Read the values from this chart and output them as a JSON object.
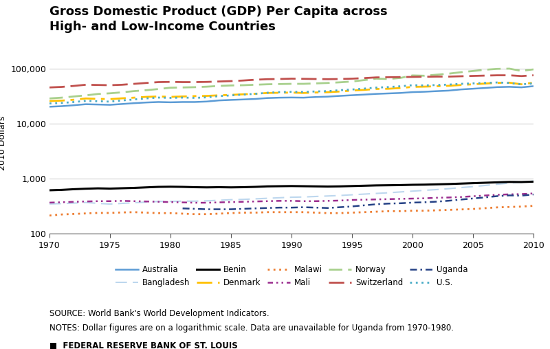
{
  "title": "Gross Domestic Product (GDP) Per Capita across\nHigh- and Low-Income Countries",
  "ylabel": "2010 Dollars",
  "source_text": "SOURCE: World Bank's World Development Indicators.",
  "notes_text": "NOTES: Dollar figures are on a logarithmic scale. Data are unavailable for Uganda from 1970-1980.",
  "footer_text": "■  FEDERAL RESERVE BANK OF ST. LOUIS",
  "years": [
    1970,
    1971,
    1972,
    1973,
    1974,
    1975,
    1976,
    1977,
    1978,
    1979,
    1980,
    1981,
    1982,
    1983,
    1984,
    1985,
    1986,
    1987,
    1988,
    1989,
    1990,
    1991,
    1992,
    1993,
    1994,
    1995,
    1996,
    1997,
    1998,
    1999,
    2000,
    2001,
    2002,
    2003,
    2004,
    2005,
    2006,
    2007,
    2008,
    2009,
    2010
  ],
  "series": {
    "Australia": {
      "color": "#5B9BD5",
      "linestyle": "solid",
      "linewidth": 1.8,
      "values": [
        20500,
        21000,
        21800,
        22800,
        22500,
        22200,
        23000,
        23800,
        24500,
        25000,
        24700,
        25000,
        25000,
        25500,
        26700,
        27300,
        27800,
        28400,
        29500,
        30000,
        30200,
        30000,
        30800,
        31300,
        32300,
        33200,
        34100,
        35100,
        35800,
        36500,
        37800,
        38400,
        39400,
        40300,
        42300,
        43600,
        45000,
        46600,
        47200,
        46200,
        48500
      ]
    },
    "Bangladesh": {
      "color": "#BDD7EE",
      "linestyle": "dashed",
      "linewidth": 1.5,
      "values": [
        350,
        355,
        362,
        372,
        358,
        348,
        358,
        368,
        378,
        388,
        388,
        393,
        393,
        398,
        408,
        418,
        423,
        433,
        443,
        453,
        463,
        468,
        478,
        488,
        498,
        513,
        528,
        543,
        558,
        578,
        598,
        618,
        638,
        663,
        693,
        723,
        758,
        798,
        838,
        873,
        913
      ]
    },
    "Benin": {
      "color": "#000000",
      "linestyle": "solid",
      "linewidth": 2.2,
      "values": [
        620,
        630,
        648,
        662,
        672,
        665,
        675,
        685,
        700,
        715,
        720,
        715,
        705,
        700,
        705,
        700,
        705,
        715,
        730,
        735,
        740,
        735,
        730,
        725,
        730,
        740,
        750,
        760,
        765,
        770,
        780,
        785,
        795,
        805,
        820,
        835,
        850,
        865,
        880,
        875,
        890
      ]
    },
    "Denmark": {
      "color": "#FFC000",
      "linestyle": "dashed",
      "linewidth": 2.0,
      "values": [
        26000,
        26500,
        27500,
        29000,
        28500,
        28200,
        29200,
        30000,
        31000,
        31500,
        31000,
        31500,
        32000,
        32300,
        33100,
        33700,
        34500,
        35300,
        36500,
        36800,
        37100,
        36500,
        37200,
        37700,
        38800,
        40400,
        41500,
        43200,
        43500,
        44900,
        47100,
        47600,
        48400,
        49300,
        50900,
        52500,
        54100,
        55700,
        56200,
        52500,
        56200
      ]
    },
    "Malawi": {
      "color": "#ED7D31",
      "linestyle": "dotted",
      "linewidth": 2.0,
      "values": [
        215,
        225,
        230,
        235,
        240,
        240,
        245,
        248,
        243,
        238,
        238,
        233,
        228,
        228,
        233,
        238,
        243,
        243,
        248,
        248,
        248,
        248,
        243,
        238,
        238,
        243,
        248,
        253,
        258,
        258,
        263,
        263,
        268,
        273,
        278,
        283,
        293,
        303,
        308,
        313,
        323
      ]
    },
    "Mali": {
      "color": "#9B2D8E",
      "linestyle": "dashdot",
      "linewidth": 1.8,
      "values": [
        370,
        375,
        382,
        388,
        393,
        393,
        398,
        393,
        388,
        383,
        378,
        373,
        368,
        368,
        373,
        378,
        383,
        388,
        393,
        398,
        398,
        393,
        393,
        398,
        403,
        413,
        418,
        423,
        428,
        433,
        438,
        443,
        453,
        458,
        468,
        483,
        498,
        513,
        523,
        528,
        543
      ]
    },
    "Norway": {
      "color": "#A8D08D",
      "linestyle": "dashed",
      "linewidth": 2.0,
      "values": [
        29000,
        30000,
        31500,
        33000,
        35000,
        36000,
        37500,
        39500,
        41000,
        43000,
        45500,
        46000,
        46500,
        47500,
        49000,
        50000,
        50500,
        51500,
        52500,
        53000,
        53500,
        53500,
        54500,
        55500,
        57000,
        59000,
        62500,
        66500,
        65500,
        68500,
        76000,
        75000,
        78500,
        82000,
        87000,
        91500,
        96500,
        100000,
        101000,
        92000,
        98000
      ]
    },
    "Switzerland": {
      "color": "#C0504D",
      "linestyle": "dashed",
      "linewidth": 2.0,
      "values": [
        46000,
        47000,
        49000,
        51500,
        51000,
        50500,
        51500,
        53500,
        55500,
        57500,
        58000,
        57500,
        57500,
        58000,
        59000,
        60000,
        61500,
        63500,
        65000,
        65500,
        66500,
        66000,
        65500,
        65000,
        65500,
        66500,
        68000,
        70000,
        70500,
        71000,
        71500,
        72000,
        72500,
        72500,
        73500,
        74500,
        75500,
        76500,
        76500,
        74000,
        76500
      ]
    },
    "Uganda": {
      "color": "#244185",
      "linestyle": "dashdot",
      "linewidth": 1.8,
      "values": [
        null,
        null,
        null,
        null,
        null,
        null,
        null,
        null,
        null,
        null,
        null,
        290,
        285,
        280,
        280,
        280,
        285,
        290,
        295,
        300,
        300,
        305,
        300,
        295,
        305,
        315,
        330,
        345,
        355,
        360,
        370,
        375,
        385,
        400,
        420,
        440,
        460,
        485,
        500,
        495,
        520
      ]
    },
    "U.S.": {
      "color": "#4BACC6",
      "linestyle": "dotted",
      "linewidth": 2.0,
      "values": [
        23500,
        24000,
        25000,
        26200,
        25800,
        25400,
        26700,
        27800,
        29100,
        30100,
        29700,
        30100,
        29700,
        30400,
        32000,
        33000,
        34100,
        35200,
        36800,
        37800,
        38300,
        38100,
        38900,
        39400,
        41000,
        42200,
        43800,
        45700,
        46700,
        48300,
        50500,
        50000,
        50900,
        51800,
        53500,
        54500,
        55600,
        56600,
        55600,
        52400,
        54400
      ]
    }
  },
  "yticks": [
    100,
    1000,
    10000,
    100000
  ],
  "ytick_labels": [
    "100",
    "1,000",
    "10,000",
    "100,000"
  ],
  "xticks": [
    1970,
    1975,
    1980,
    1985,
    1990,
    1995,
    2000,
    2005,
    2010
  ],
  "ylim": [
    100,
    200000
  ],
  "xlim": [
    1970,
    2010
  ],
  "grid_color": "#BBBBBB",
  "title_fontsize": 13,
  "label_fontsize": 9,
  "tick_fontsize": 9,
  "legend_fontsize": 8.5,
  "footer_fontsize": 8.5
}
